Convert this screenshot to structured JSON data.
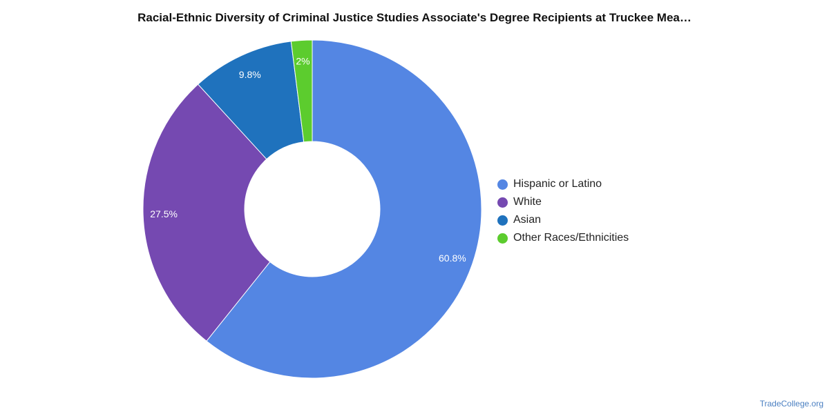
{
  "chart_data": {
    "type": "pie",
    "title": "Racial-Ethnic Diversity of Criminal Justice Studies Associate's Degree Recipients at Truckee Mea…",
    "categories": [
      "Hispanic or Latino",
      "White",
      "Asian",
      "Other Races/Ethnicities"
    ],
    "values": [
      60.8,
      27.5,
      9.8,
      2
    ],
    "value_labels": [
      "60.8%",
      "27.5%",
      "9.8%",
      "2%"
    ],
    "colors": [
      "#5486e3",
      "#7549b1",
      "#1f72bd",
      "#5ccc2e"
    ],
    "donut": true,
    "legend_position": "right"
  },
  "watermark": "TradeCollege.org"
}
